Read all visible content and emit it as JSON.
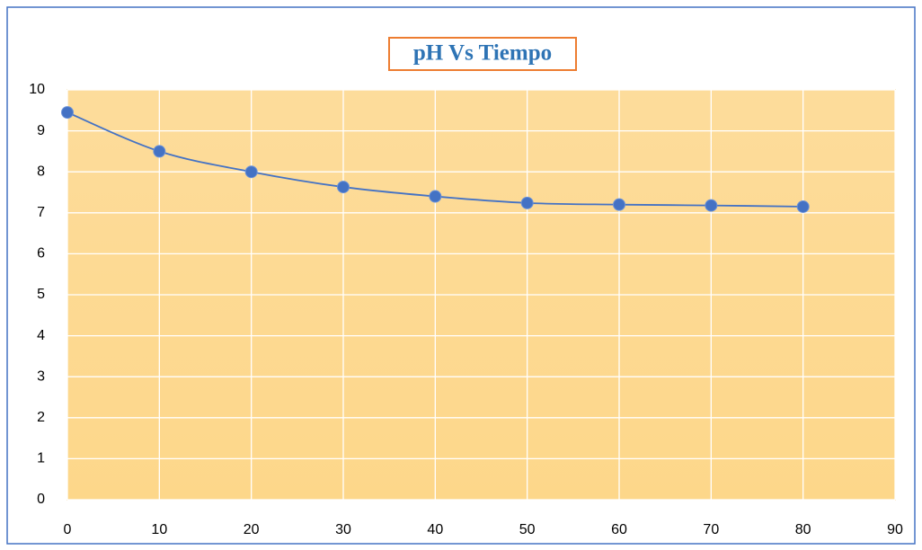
{
  "chart_data": {
    "type": "line",
    "title": "pH Vs Tiempo",
    "x": [
      0,
      10,
      20,
      30,
      40,
      50,
      60,
      70,
      80
    ],
    "series": [
      {
        "name": "pH",
        "color": "#4472c4",
        "values": [
          9.45,
          8.5,
          8.0,
          7.63,
          7.4,
          7.24,
          7.2,
          7.18,
          7.15
        ]
      }
    ],
    "xlim": [
      0,
      90
    ],
    "xticks": [
      0,
      10,
      20,
      30,
      40,
      50,
      60,
      70,
      80,
      90
    ],
    "ylim": [
      0,
      10
    ],
    "yticks": [
      0,
      1,
      2,
      3,
      4,
      5,
      6,
      7,
      8,
      9,
      10
    ],
    "grid": true,
    "smooth": true
  }
}
